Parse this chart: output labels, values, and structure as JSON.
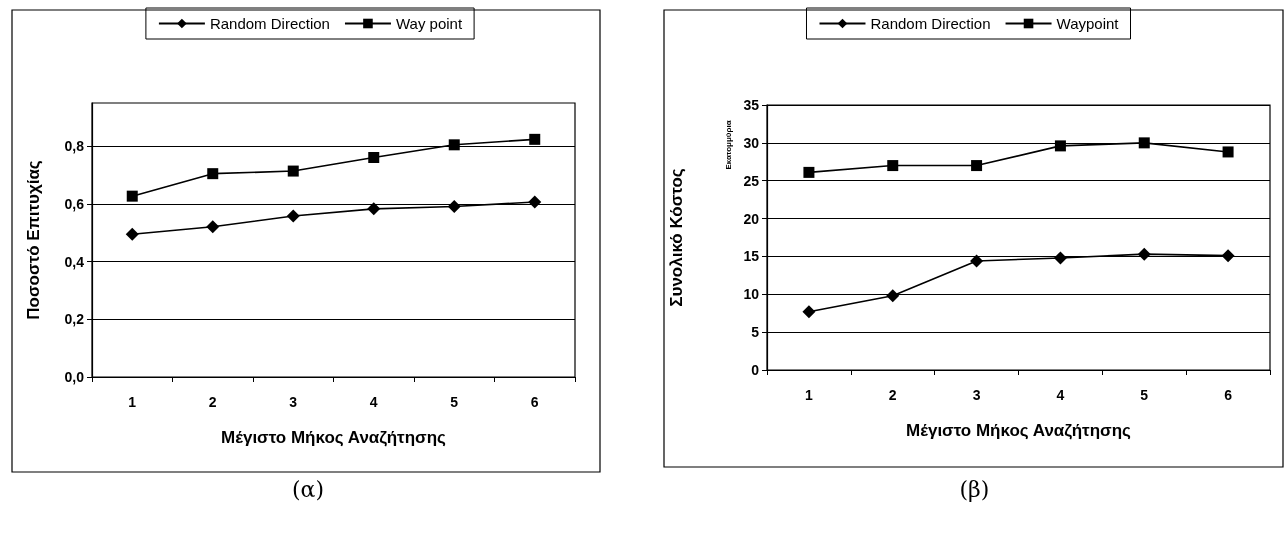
{
  "chart_data": [
    {
      "type": "line",
      "xlabel": "Μέγιστο Μήκος Αναζήτησης",
      "ylabel": "Ποσοστό Επιτυχίας",
      "categories": [
        "1",
        "2",
        "3",
        "4",
        "5",
        "6"
      ],
      "series": [
        {
          "name": "Random Direction",
          "color": "#000000",
          "marker": "diamond",
          "values": [
            0.495,
            0.521,
            0.558,
            0.583,
            0.591,
            0.607
          ]
        },
        {
          "name": "Way point",
          "color": "#000000",
          "marker": "square",
          "values": [
            0.627,
            0.705,
            0.714,
            0.761,
            0.805,
            0.824
          ]
        }
      ],
      "ylim": [
        0,
        0.95
      ],
      "yticks": [
        {
          "value": 0,
          "label": "0,0"
        },
        {
          "value": 0.2,
          "label": "0,2"
        },
        {
          "value": 0.4,
          "label": "0,4"
        },
        {
          "value": 0.6,
          "label": "0,6"
        },
        {
          "value": 0.8,
          "label": "0,8"
        }
      ],
      "grid": "y",
      "legend": "top",
      "line_style": "solid",
      "annotations": [
        "(α)"
      ]
    },
    {
      "type": "line",
      "xlabel": "Μέγιστο Μήκος Αναζήτησης",
      "ylabel": "Συνολικό Κόστος",
      "categories": [
        "1",
        "2",
        "3",
        "4",
        "5",
        "6"
      ],
      "series": [
        {
          "name": "Random Direction",
          "color": "#000000",
          "marker": "diamond",
          "values": [
            7.7,
            9.8,
            14.4,
            14.8,
            15.3,
            15.1
          ]
        },
        {
          "name": "Waypoint",
          "color": "#000000",
          "marker": "square",
          "values": [
            26.1,
            27.0,
            27.0,
            29.6,
            30.0,
            28.8
          ]
        }
      ],
      "ylim": [
        0,
        35
      ],
      "yticks": [
        0,
        5,
        10,
        15,
        20,
        25,
        30,
        35
      ],
      "grid": "y",
      "legend": "top",
      "line_style": "solid",
      "annotations": [
        "Εκατομμύρια",
        "(β)"
      ]
    }
  ]
}
